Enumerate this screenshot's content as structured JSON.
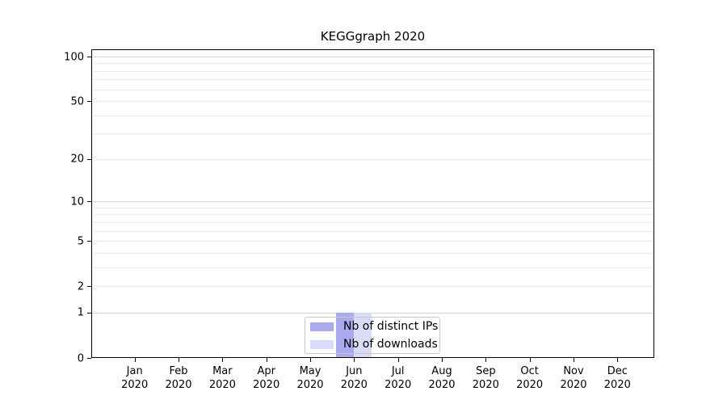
{
  "chart_data": {
    "type": "bar",
    "title": "KEGGgraph 2020",
    "categories": [
      {
        "month": "Jan",
        "year": "2020"
      },
      {
        "month": "Feb",
        "year": "2020"
      },
      {
        "month": "Mar",
        "year": "2020"
      },
      {
        "month": "Apr",
        "year": "2020"
      },
      {
        "month": "May",
        "year": "2020"
      },
      {
        "month": "Jun",
        "year": "2020"
      },
      {
        "month": "Jul",
        "year": "2020"
      },
      {
        "month": "Aug",
        "year": "2020"
      },
      {
        "month": "Sep",
        "year": "2020"
      },
      {
        "month": "Oct",
        "year": "2020"
      },
      {
        "month": "Nov",
        "year": "2020"
      },
      {
        "month": "Dec",
        "year": "2020"
      }
    ],
    "series": [
      {
        "name": "Nb of distinct IPs",
        "color": "#a9abee",
        "values": [
          0,
          0,
          0,
          0,
          0,
          1,
          0,
          0,
          0,
          0,
          0,
          0
        ]
      },
      {
        "name": "Nb of downloads",
        "color": "#d9dbf7",
        "values": [
          0,
          0,
          0,
          0,
          0,
          1,
          0,
          0,
          0,
          0,
          0,
          0
        ]
      }
    ],
    "y_axis": {
      "scale": "log1p",
      "tick_values": [
        0,
        1,
        2,
        5,
        10,
        20,
        50,
        100
      ],
      "range": [
        0,
        100
      ]
    },
    "gridlines": {
      "values": [
        1,
        2,
        3,
        4,
        5,
        6,
        7,
        8,
        9,
        10,
        20,
        30,
        40,
        50,
        60,
        70,
        80,
        90,
        100
      ],
      "major_values": [
        1,
        10,
        100
      ],
      "minor_color": "#ececec",
      "major_color": "#d4d4d4"
    },
    "legend": {
      "position": "bottom-center",
      "entries": [
        "Nb of distinct IPs",
        "Nb of downloads"
      ]
    },
    "grid": "horizontal",
    "axis_color": "#000000",
    "background_color": "#ffffff"
  }
}
